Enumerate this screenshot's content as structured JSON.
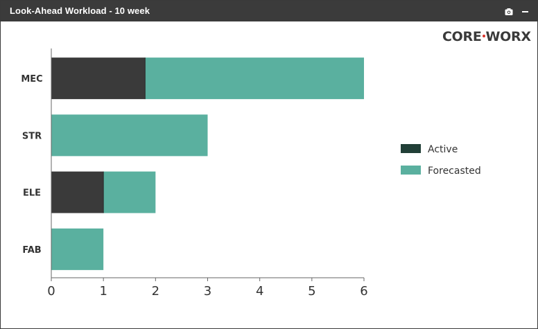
{
  "window": {
    "title": "Look-Ahead Workload - 10 week",
    "logo_left": "CORE",
    "logo_right": "WORX"
  },
  "colors": {
    "titlebar": "#3b3b3b",
    "active": "#3a3a3a",
    "forecasted": "#5ab09f",
    "active_legend": "#213f37"
  },
  "icons": [
    "camera-icon",
    "minimize-icon"
  ],
  "chart_data": {
    "type": "bar",
    "orientation": "horizontal",
    "stacked": true,
    "categories": [
      "MEC",
      "STR",
      "ELE",
      "FAB"
    ],
    "series": [
      {
        "name": "Active",
        "values": [
          1.8,
          0,
          1,
          0
        ]
      },
      {
        "name": "Forecasted",
        "values": [
          4.2,
          3,
          1,
          1
        ]
      }
    ],
    "xlim": [
      0,
      6
    ],
    "xticks": [
      "0",
      "1",
      "2",
      "3",
      "4",
      "5",
      "6"
    ],
    "legend": "right",
    "grid": false
  }
}
